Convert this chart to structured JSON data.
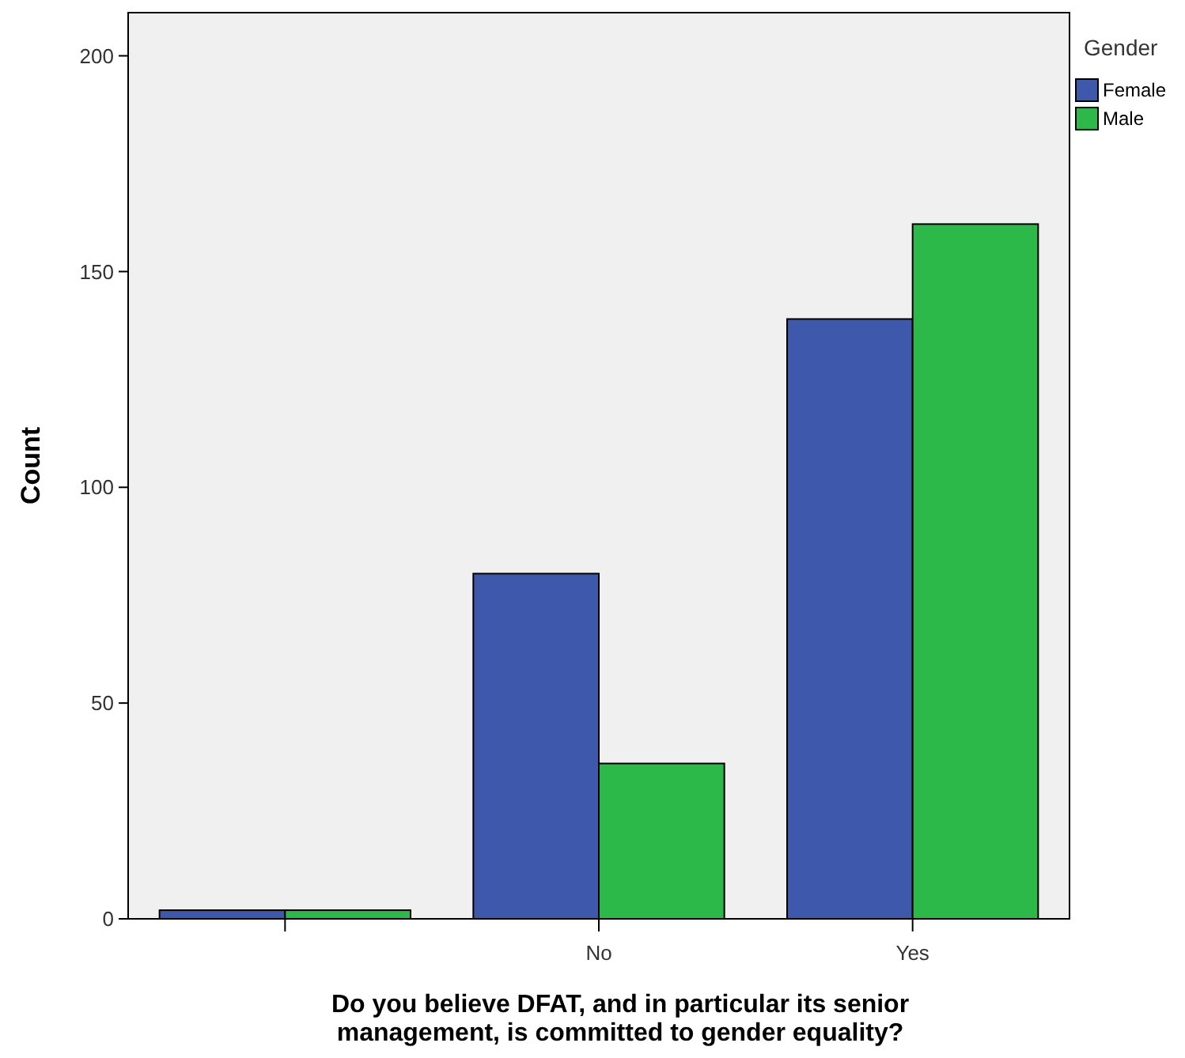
{
  "chart_data": {
    "type": "bar",
    "xlabel": "Do you believe DFAT, and in particular its senior management, is committed to gender equality?",
    "ylabel": "Count",
    "legend_title": "Gender",
    "categories": [
      null,
      "No",
      "Yes"
    ],
    "series": [
      {
        "name": "Female",
        "color": "#3e58ac",
        "values": [
          2,
          80,
          139
        ]
      },
      {
        "name": "Male",
        "color": "#2db84a",
        "values": [
          2,
          36,
          161
        ]
      }
    ],
    "ylim": [
      0,
      210
    ],
    "yticks": [
      0,
      50,
      100,
      150,
      200
    ],
    "grid": false,
    "legend": "top right"
  }
}
